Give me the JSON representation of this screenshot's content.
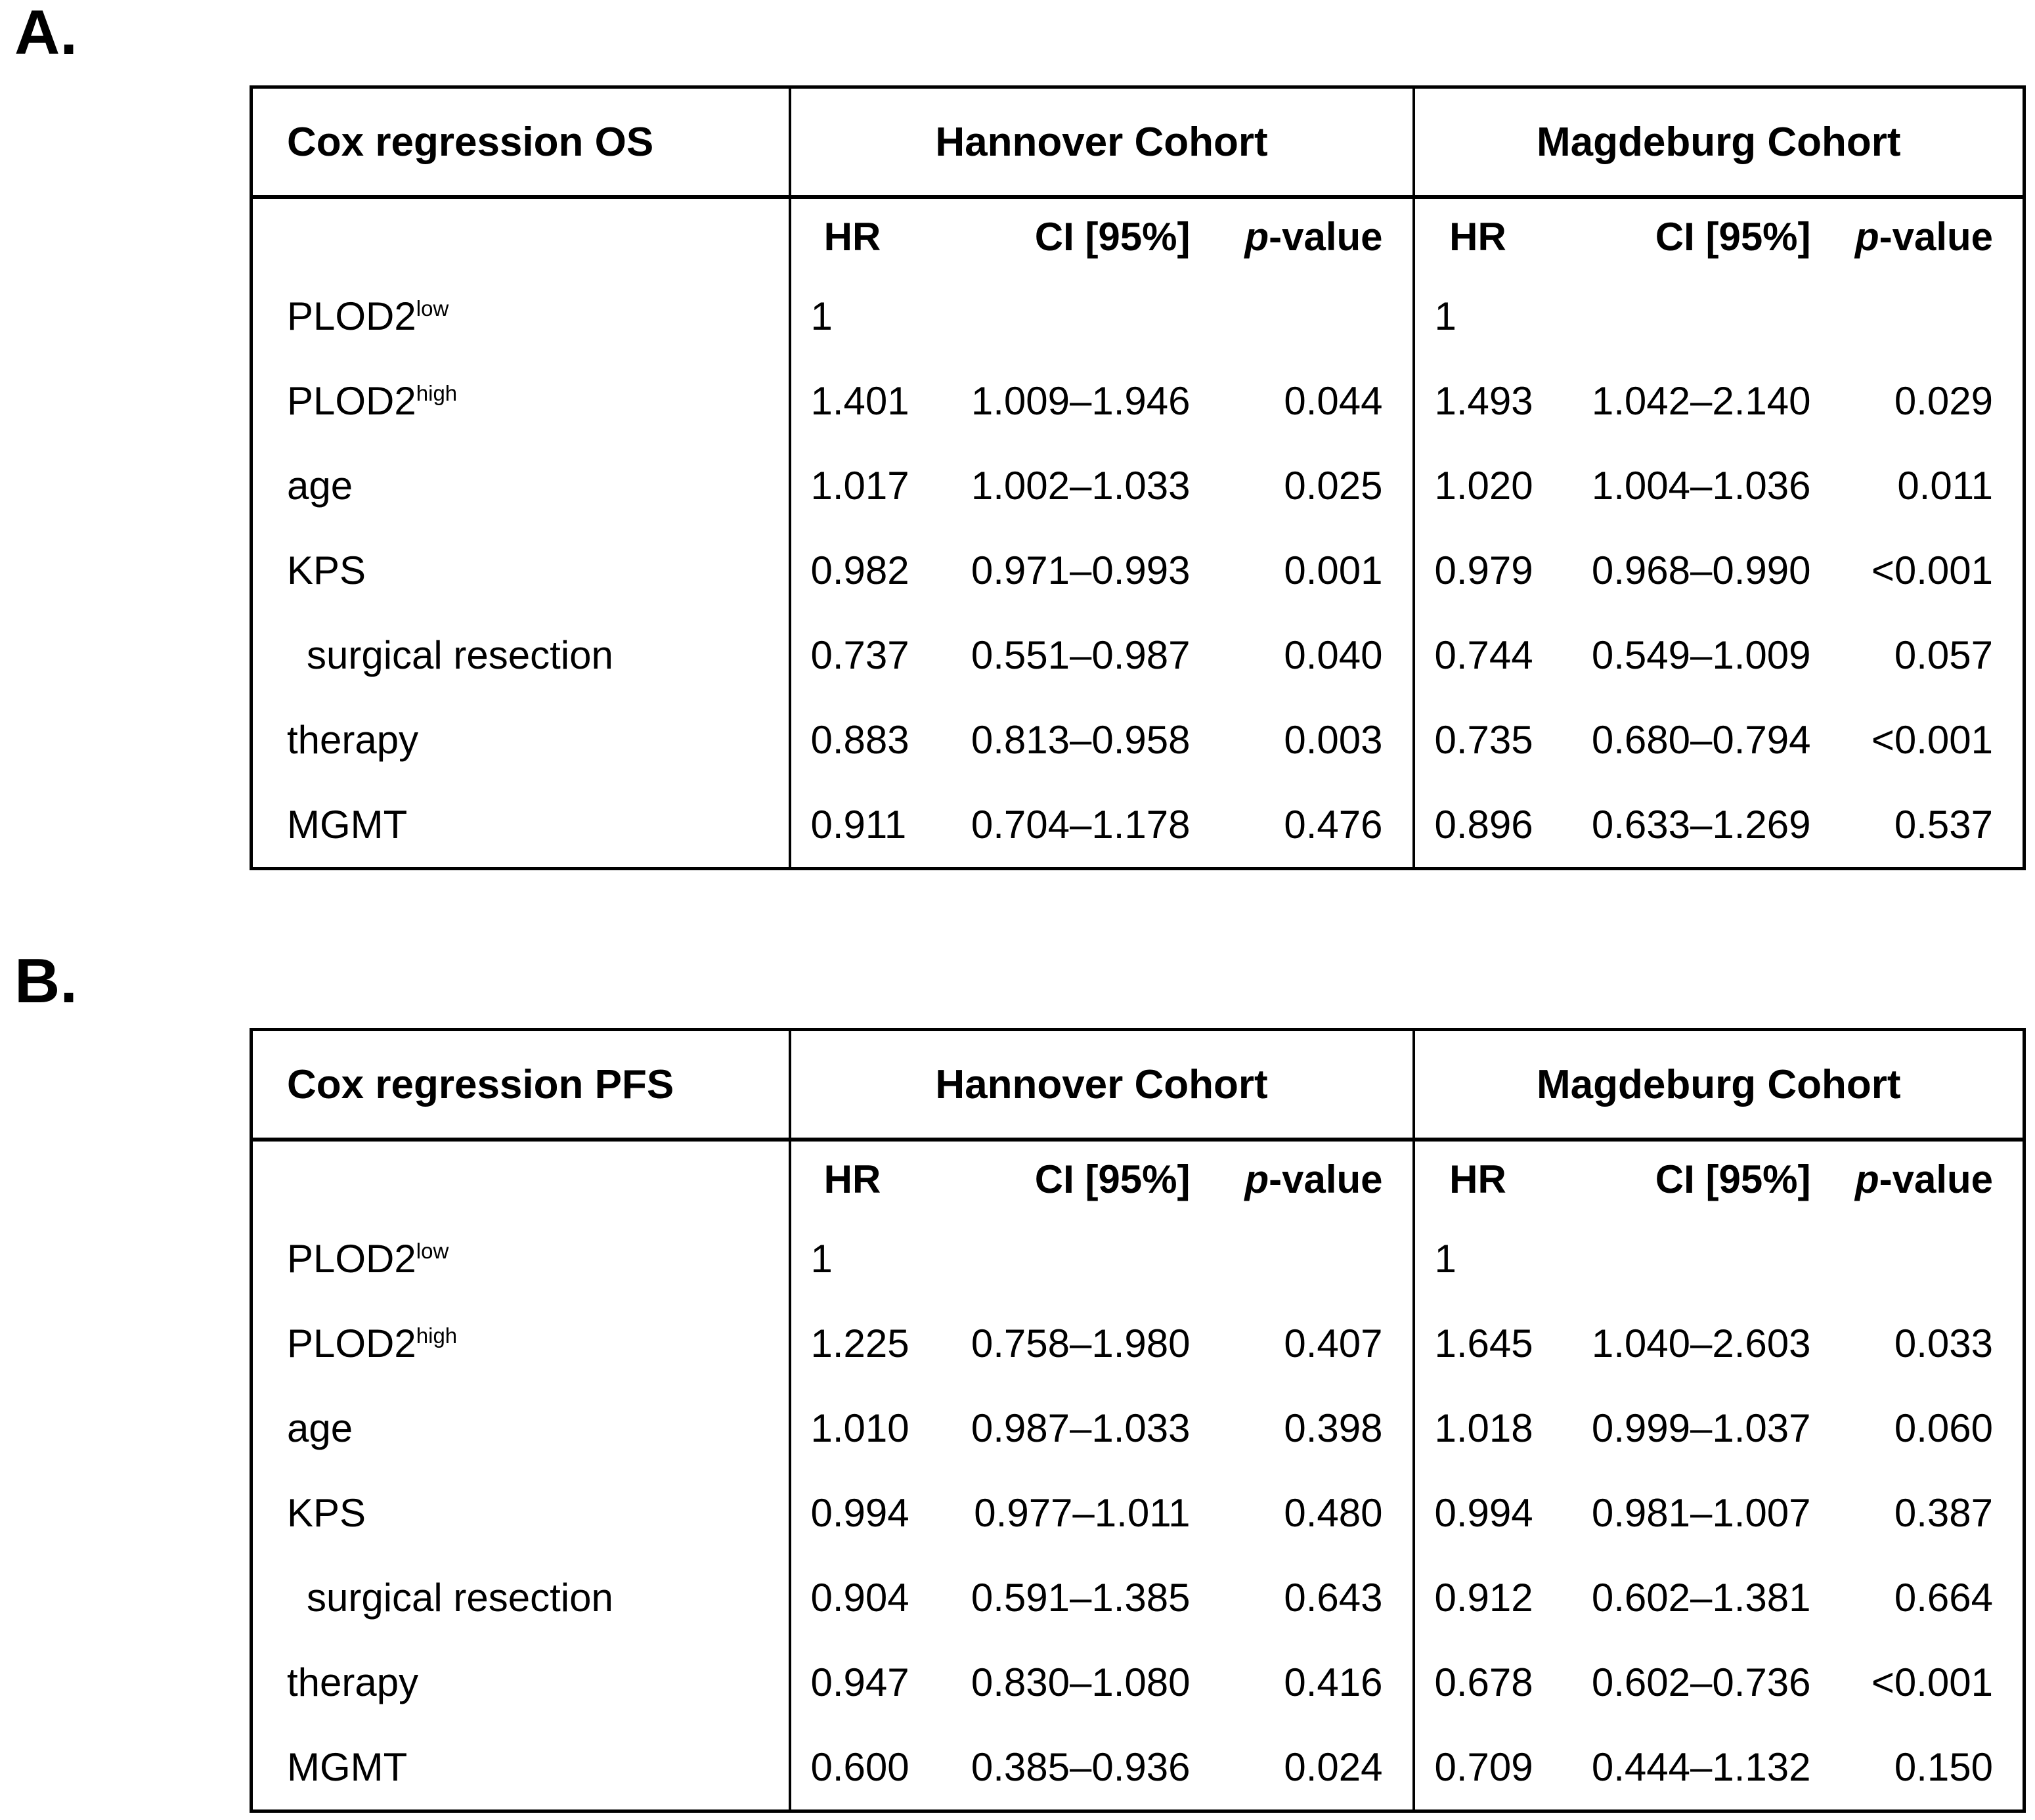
{
  "colors": {
    "text": "#000000",
    "background": "#ffffff",
    "border": "#000000"
  },
  "panel_labels": {
    "a": "A.",
    "b": "B."
  },
  "col_headers": {
    "hr": "HR",
    "ci": "CI [95%]",
    "p_italic": "p",
    "p_rest": "-value"
  },
  "tables": [
    {
      "id": "os",
      "title": "Cox regression OS",
      "cohorts": {
        "left": "Hannover Cohort",
        "right": "Magdeburg Cohort"
      },
      "rows": [
        {
          "label": "PLOD2",
          "sup": "low",
          "h_hr": "1",
          "h_ci": "",
          "h_p": "",
          "m_hr": "1",
          "m_ci": "",
          "m_p": ""
        },
        {
          "label": "PLOD2",
          "sup": "high",
          "h_hr": "1.401",
          "h_ci": "1.009–1.946",
          "h_p": "0.044",
          "m_hr": "1.493",
          "m_ci": "1.042–2.140",
          "m_p": "0.029"
        },
        {
          "label": "age",
          "sup": "",
          "h_hr": "1.017",
          "h_ci": "1.002–1.033",
          "h_p": "0.025",
          "m_hr": "1.020",
          "m_ci": "1.004–1.036",
          "m_p": "0.011"
        },
        {
          "label": "KPS",
          "sup": "",
          "h_hr": "0.982",
          "h_ci": "0.971–0.993",
          "h_p": "0.001",
          "m_hr": "0.979",
          "m_ci": "0.968–0.990",
          "m_p": "<0.001"
        },
        {
          "label": "surgical resection",
          "sup": "",
          "h_hr": "0.737",
          "h_ci": "0.551–0.987",
          "h_p": "0.040",
          "m_hr": "0.744",
          "m_ci": "0.549–1.009",
          "m_p": "0.057"
        },
        {
          "label": "therapy",
          "sup": "",
          "h_hr": "0.883",
          "h_ci": "0.813–0.958",
          "h_p": "0.003",
          "m_hr": "0.735",
          "m_ci": "0.680–0.794",
          "m_p": "<0.001"
        },
        {
          "label": "MGMT",
          "sup": "",
          "h_hr": "0.911",
          "h_ci": "0.704–1.178",
          "h_p": "0.476",
          "m_hr": "0.896",
          "m_ci": "0.633–1.269",
          "m_p": "0.537"
        }
      ]
    },
    {
      "id": "pfs",
      "title": "Cox regression PFS",
      "cohorts": {
        "left": "Hannover Cohort",
        "right": "Magdeburg Cohort"
      },
      "rows": [
        {
          "label": "PLOD2",
          "sup": "low",
          "h_hr": "1",
          "h_ci": "",
          "h_p": "",
          "m_hr": "1",
          "m_ci": "",
          "m_p": ""
        },
        {
          "label": "PLOD2",
          "sup": "high",
          "h_hr": "1.225",
          "h_ci": "0.758–1.980",
          "h_p": "0.407",
          "m_hr": "1.645",
          "m_ci": "1.040–2.603",
          "m_p": "0.033"
        },
        {
          "label": "age",
          "sup": "",
          "h_hr": "1.010",
          "h_ci": "0.987–1.033",
          "h_p": "0.398",
          "m_hr": "1.018",
          "m_ci": "0.999–1.037",
          "m_p": "0.060"
        },
        {
          "label": "KPS",
          "sup": "",
          "h_hr": "0.994",
          "h_ci": "0.977–1.011",
          "h_p": "0.480",
          "m_hr": "0.994",
          "m_ci": "0.981–1.007",
          "m_p": "0.387"
        },
        {
          "label": "surgical resection",
          "sup": "",
          "h_hr": "0.904",
          "h_ci": "0.591–1.385",
          "h_p": "0.643",
          "m_hr": "0.912",
          "m_ci": "0.602–1.381",
          "m_p": "0.664"
        },
        {
          "label": "therapy",
          "sup": "",
          "h_hr": "0.947",
          "h_ci": "0.830–1.080",
          "h_p": "0.416",
          "m_hr": "0.678",
          "m_ci": "0.602–0.736",
          "m_p": "<0.001"
        },
        {
          "label": "MGMT",
          "sup": "",
          "h_hr": "0.600",
          "h_ci": "0.385–0.936",
          "h_p": "0.024",
          "m_hr": "0.709",
          "m_ci": "0.444–1.132",
          "m_p": "0.150"
        }
      ]
    }
  ]
}
